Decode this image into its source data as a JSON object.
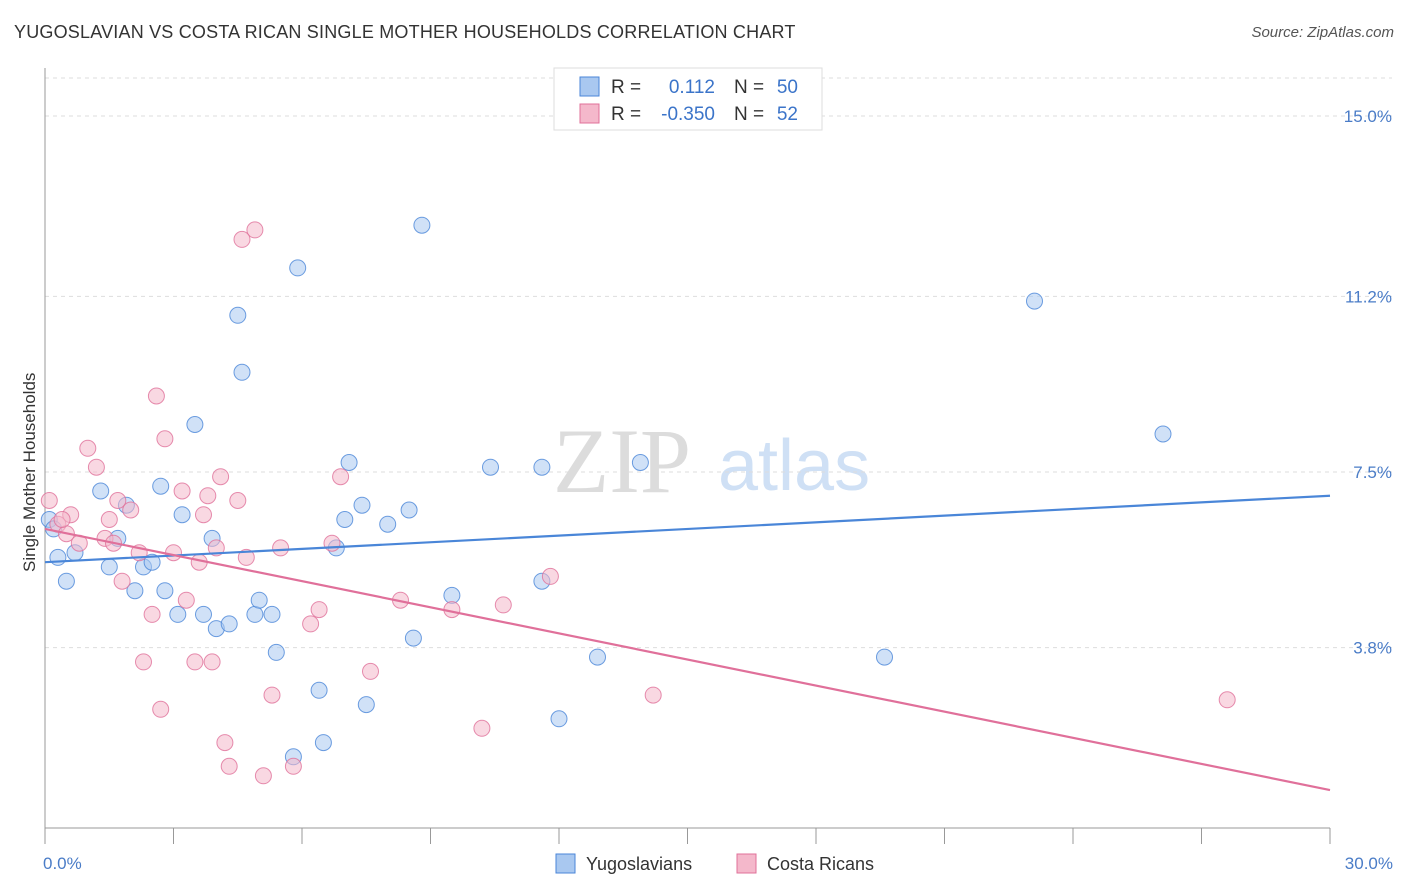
{
  "title": "YUGOSLAVIAN VS COSTA RICAN SINGLE MOTHER HOUSEHOLDS CORRELATION CHART",
  "source": "Source: ZipAtlas.com",
  "watermark": {
    "zip": "ZIP",
    "atlas": "atlas"
  },
  "legend": {
    "rows": [
      {
        "r_label": "R =",
        "r_value": "0.112",
        "n_label": "N =",
        "n_value": "50",
        "color": "#a9c8f0"
      },
      {
        "r_label": "R =",
        "r_value": "-0.350",
        "n_label": "N =",
        "n_value": "52",
        "color": "#f4b8cb"
      }
    ]
  },
  "bottom_legend": [
    {
      "label": "Yugoslavians",
      "color": "#a9c8f0"
    },
    {
      "label": "Costa Ricans",
      "color": "#f4b8cb"
    }
  ],
  "chart_data": {
    "type": "scatter",
    "title": "YUGOSLAVIAN VS COSTA RICAN SINGLE MOTHER HOUSEHOLDS CORRELATION CHART",
    "xlabel": "",
    "ylabel": "Single Mother Households",
    "xlim": [
      0,
      30
    ],
    "ylim": [
      0,
      15.8
    ],
    "x_tick_labels": [
      "0.0%",
      "30.0%"
    ],
    "y_ticks": [
      3.8,
      7.5,
      11.2,
      15.0
    ],
    "y_tick_labels": [
      "3.8%",
      "7.5%",
      "11.2%",
      "15.0%"
    ],
    "grid": true,
    "series": [
      {
        "name": "Yugoslavians",
        "color": "#4a86d8",
        "fill": "#a9c8f0",
        "trend": {
          "x": [
            0,
            30
          ],
          "y": [
            5.6,
            7.0
          ]
        },
        "points": [
          [
            0.1,
            6.5
          ],
          [
            0.3,
            5.7
          ],
          [
            0.5,
            5.2
          ],
          [
            0.7,
            5.8
          ],
          [
            1.3,
            7.1
          ],
          [
            1.5,
            5.5
          ],
          [
            1.7,
            6.1
          ],
          [
            1.9,
            6.8
          ],
          [
            2.1,
            5.0
          ],
          [
            2.3,
            5.5
          ],
          [
            2.5,
            5.6
          ],
          [
            2.7,
            7.2
          ],
          [
            2.8,
            5.0
          ],
          [
            3.1,
            4.5
          ],
          [
            3.2,
            6.6
          ],
          [
            3.5,
            8.5
          ],
          [
            3.7,
            4.5
          ],
          [
            3.9,
            6.1
          ],
          [
            4.0,
            4.2
          ],
          [
            4.3,
            4.3
          ],
          [
            4.5,
            10.8
          ],
          [
            4.6,
            9.6
          ],
          [
            4.9,
            4.5
          ],
          [
            5.0,
            4.8
          ],
          [
            5.3,
            4.5
          ],
          [
            5.4,
            3.7
          ],
          [
            5.9,
            11.8
          ],
          [
            5.8,
            1.5
          ],
          [
            6.4,
            2.9
          ],
          [
            6.5,
            1.8
          ],
          [
            6.8,
            5.9
          ],
          [
            7.0,
            6.5
          ],
          [
            7.1,
            7.7
          ],
          [
            7.4,
            6.8
          ],
          [
            7.5,
            2.6
          ],
          [
            8.0,
            6.4
          ],
          [
            8.5,
            6.7
          ],
          [
            8.6,
            4.0
          ],
          [
            9.5,
            4.9
          ],
          [
            8.8,
            12.7
          ],
          [
            10.4,
            7.6
          ],
          [
            11.6,
            7.6
          ],
          [
            11.6,
            5.2
          ],
          [
            12.0,
            2.3
          ],
          [
            12.9,
            3.6
          ],
          [
            13.9,
            7.7
          ],
          [
            19.6,
            3.6
          ],
          [
            23.1,
            11.1
          ],
          [
            26.1,
            8.3
          ],
          [
            0.2,
            6.3
          ]
        ]
      },
      {
        "name": "Costa Ricans",
        "color": "#e0709a",
        "fill": "#f4b8cb",
        "trend": {
          "x": [
            0,
            30
          ],
          "y": [
            6.3,
            0.8
          ]
        },
        "points": [
          [
            0.1,
            6.9
          ],
          [
            0.3,
            6.4
          ],
          [
            0.5,
            6.2
          ],
          [
            0.6,
            6.6
          ],
          [
            0.8,
            6.0
          ],
          [
            1.0,
            8.0
          ],
          [
            1.2,
            7.6
          ],
          [
            1.4,
            6.1
          ],
          [
            1.5,
            6.5
          ],
          [
            1.7,
            6.9
          ],
          [
            1.8,
            5.2
          ],
          [
            2.0,
            6.7
          ],
          [
            2.2,
            5.8
          ],
          [
            2.3,
            3.5
          ],
          [
            2.5,
            4.5
          ],
          [
            2.6,
            9.1
          ],
          [
            2.7,
            2.5
          ],
          [
            2.8,
            8.2
          ],
          [
            3.0,
            5.8
          ],
          [
            3.2,
            7.1
          ],
          [
            3.3,
            4.8
          ],
          [
            3.5,
            3.5
          ],
          [
            3.6,
            5.6
          ],
          [
            3.7,
            6.6
          ],
          [
            3.8,
            7.0
          ],
          [
            3.9,
            3.5
          ],
          [
            4.1,
            7.4
          ],
          [
            4.2,
            1.8
          ],
          [
            4.3,
            1.3
          ],
          [
            4.5,
            6.9
          ],
          [
            4.6,
            12.4
          ],
          [
            4.7,
            5.7
          ],
          [
            4.9,
            12.6
          ],
          [
            5.1,
            1.1
          ],
          [
            5.3,
            2.8
          ],
          [
            5.5,
            5.9
          ],
          [
            5.8,
            1.3
          ],
          [
            6.2,
            4.3
          ],
          [
            6.4,
            4.6
          ],
          [
            6.7,
            6.0
          ],
          [
            6.9,
            7.4
          ],
          [
            7.6,
            3.3
          ],
          [
            8.3,
            4.8
          ],
          [
            9.5,
            4.6
          ],
          [
            10.2,
            2.1
          ],
          [
            10.7,
            4.7
          ],
          [
            11.8,
            5.3
          ],
          [
            14.2,
            2.8
          ],
          [
            27.6,
            2.7
          ],
          [
            0.4,
            6.5
          ],
          [
            1.6,
            6.0
          ],
          [
            4.0,
            5.9
          ]
        ]
      }
    ]
  }
}
